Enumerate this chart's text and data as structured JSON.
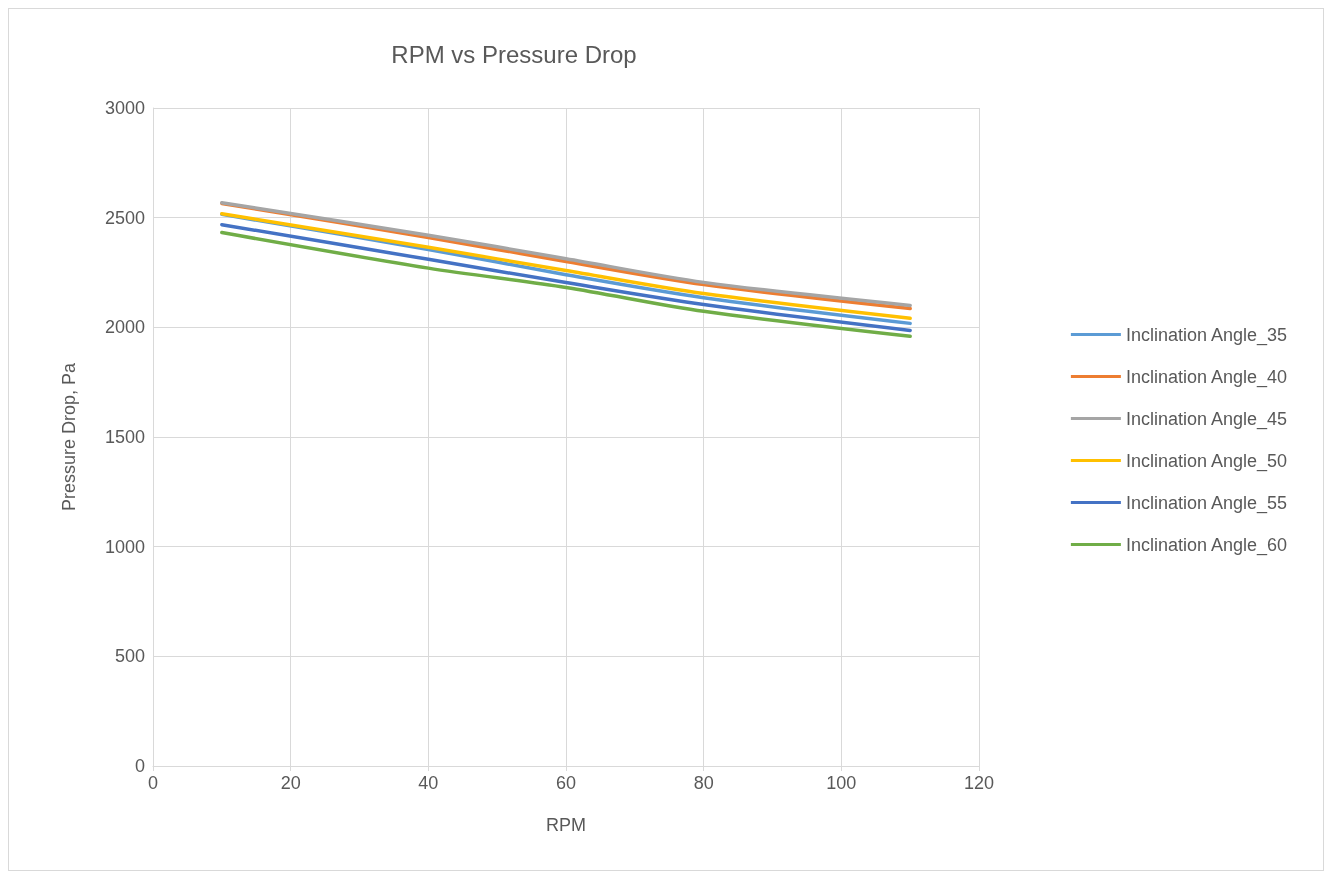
{
  "chart_data": {
    "type": "line",
    "title": "RPM vs Pressure Drop",
    "xlabel": "RPM",
    "ylabel": "Pressure Drop, Pa",
    "x": [
      10,
      40,
      60,
      80,
      110
    ],
    "series": [
      {
        "name": "Inclination Angle_35",
        "color": "#5b9bd5",
        "values": [
          2515,
          2355,
          2240,
          2135,
          2018
        ]
      },
      {
        "name": "Inclination Angle_40",
        "color": "#ed7d31",
        "values": [
          2565,
          2410,
          2300,
          2195,
          2086
        ]
      },
      {
        "name": "Inclination Angle_45",
        "color": "#a5a5a5",
        "values": [
          2568,
          2420,
          2313,
          2205,
          2100
        ]
      },
      {
        "name": "Inclination Angle_50",
        "color": "#ffc000",
        "values": [
          2518,
          2365,
          2259,
          2154,
          2041
        ]
      },
      {
        "name": "Inclination Angle_55",
        "color": "#4472c4",
        "values": [
          2468,
          2310,
          2204,
          2104,
          1986
        ]
      },
      {
        "name": "Inclination Angle_60",
        "color": "#70ad47",
        "values": [
          2432,
          2270,
          2182,
          2073,
          1959
        ]
      }
    ],
    "xlim": [
      0,
      120
    ],
    "xticks": [
      0,
      20,
      40,
      60,
      80,
      100,
      120
    ],
    "ylim": [
      0,
      3000
    ],
    "yticks": [
      0,
      500,
      1000,
      1500,
      2000,
      2500,
      3000
    ],
    "grid": true,
    "legend": "right",
    "marker": "none",
    "line_style": "solid"
  }
}
